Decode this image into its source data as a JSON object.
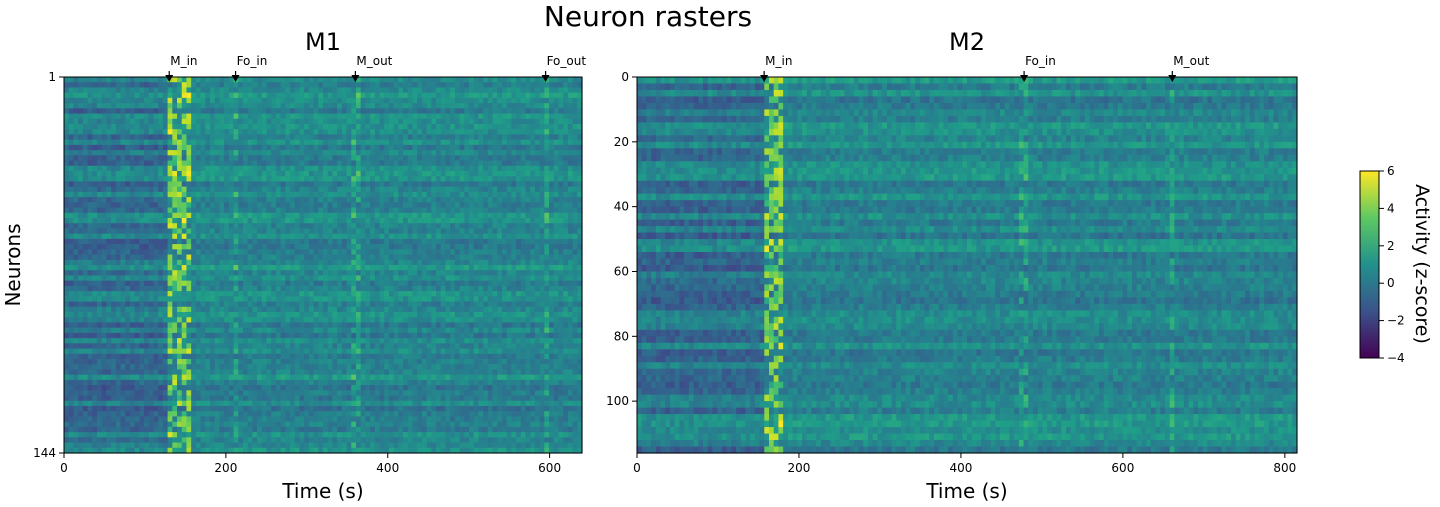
{
  "figure": {
    "title": "Neuron rasters",
    "colorbar": {
      "label": "Activity (z-score)",
      "ticks": [
        6,
        4,
        2,
        0,
        -2,
        -4
      ],
      "range": [
        -4,
        6
      ]
    },
    "colormap": "viridis"
  },
  "chart_data": [
    {
      "type": "heatmap",
      "title": "M1",
      "xlabel": "Time (s)",
      "ylabel": "Neurons",
      "xlim": [
        0,
        640
      ],
      "ylim": [
        1,
        144
      ],
      "xticks": [
        0,
        200,
        400,
        600
      ],
      "yticks": [
        1,
        144
      ],
      "value_range": [
        -4,
        6
      ],
      "events": [
        {
          "label": "M_in",
          "time": 130
        },
        {
          "label": "Fo_in",
          "time": 212
        },
        {
          "label": "M_out",
          "time": 360
        },
        {
          "label": "Fo_out",
          "time": 595
        }
      ]
    },
    {
      "type": "heatmap",
      "title": "M2",
      "xlabel": "Time (s)",
      "ylabel": "",
      "xlim": [
        0,
        815
      ],
      "ylim": [
        0,
        116
      ],
      "xticks": [
        0,
        200,
        400,
        600,
        800
      ],
      "yticks": [
        0,
        20,
        40,
        60,
        80,
        100
      ],
      "value_range": [
        -4,
        6
      ],
      "events": [
        {
          "label": "M_in",
          "time": 157
        },
        {
          "label": "Fo_in",
          "time": 478
        },
        {
          "label": "M_out",
          "time": 661
        }
      ]
    }
  ]
}
